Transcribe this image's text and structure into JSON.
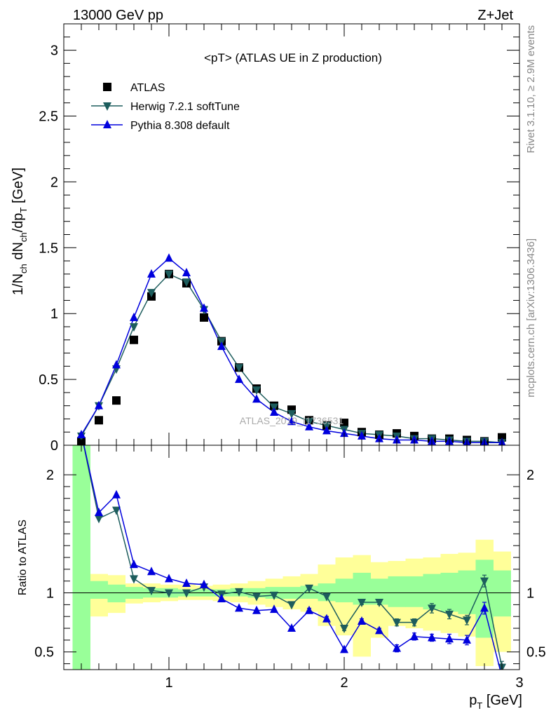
{
  "header": {
    "left": "13000 GeV pp",
    "right": "Z+Jet"
  },
  "side_text": {
    "rivet": "Rivet 3.1.10, ≥ 2.9M events",
    "site": "mcplots.cern.ch [arXiv:1306.3436]"
  },
  "watermark": "ATLAS_2019_I1736531",
  "chart_data": [
    {
      "type": "scatter",
      "title": "<pT> (ATLAS UE in Z production)",
      "xlabel": "p_T [GeV]",
      "ylabel": "1/N_ch dN_ch/dp_T [GeV]",
      "xlim": [
        0.4,
        3.0
      ],
      "ylim": [
        0,
        3.2
      ],
      "yticks": [
        0,
        0.5,
        1,
        1.5,
        2,
        2.5,
        3
      ],
      "ytick_labels": [
        "0",
        "0.5",
        "1",
        "1.5",
        "2",
        "2.5",
        "3"
      ],
      "x": [
        0.5,
        0.6,
        0.7,
        0.8,
        0.9,
        1.0,
        1.1,
        1.2,
        1.3,
        1.4,
        1.5,
        1.6,
        1.7,
        1.8,
        1.9,
        2.0,
        2.1,
        2.2,
        2.3,
        2.4,
        2.5,
        2.6,
        2.7,
        2.8,
        2.9
      ],
      "series": [
        {
          "name": "ATLAS",
          "color": "#000000",
          "marker": "square",
          "values": [
            0.03,
            0.19,
            0.34,
            0.8,
            1.13,
            1.3,
            1.23,
            0.97,
            0.79,
            0.59,
            0.43,
            0.3,
            0.27,
            0.19,
            0.15,
            0.17,
            0.1,
            0.08,
            0.09,
            0.07,
            0.05,
            0.05,
            0.04,
            0.03,
            0.06
          ]
        },
        {
          "name": "Herwig 7.2.1 softTune",
          "color": "#1d5d5d",
          "marker": "triangle-down",
          "values": [
            0.07,
            0.3,
            0.58,
            0.9,
            1.16,
            1.3,
            1.24,
            1.03,
            0.79,
            0.59,
            0.42,
            0.29,
            0.24,
            0.18,
            0.15,
            0.12,
            0.09,
            0.08,
            0.07,
            0.05,
            0.05,
            0.04,
            0.03,
            0.03,
            0.02
          ]
        },
        {
          "name": "Pythia 8.308 default",
          "color": "#0000dd",
          "marker": "triangle-up",
          "values": [
            0.08,
            0.3,
            0.61,
            0.97,
            1.3,
            1.42,
            1.31,
            1.04,
            0.75,
            0.5,
            0.35,
            0.25,
            0.18,
            0.14,
            0.11,
            0.09,
            0.07,
            0.05,
            0.04,
            0.04,
            0.03,
            0.03,
            0.02,
            0.02,
            0.02
          ]
        }
      ],
      "legend_position": "top-left"
    },
    {
      "type": "line",
      "ylabel": "Ratio to ATLAS",
      "xlabel": "p_T [GeV]",
      "xlim": [
        0.4,
        3.0
      ],
      "ylim": [
        0.35,
        2.25
      ],
      "yticks": [
        0.5,
        1,
        2
      ],
      "ytick_labels": [
        "0.5",
        "1",
        "2"
      ],
      "xticks": [
        1,
        2,
        3
      ],
      "xtick_labels": [
        "1",
        "2",
        "3"
      ],
      "x": [
        0.5,
        0.6,
        0.7,
        0.8,
        0.9,
        1.0,
        1.1,
        1.2,
        1.3,
        1.4,
        1.5,
        1.6,
        1.7,
        1.8,
        1.9,
        2.0,
        2.1,
        2.2,
        2.3,
        2.4,
        2.5,
        2.6,
        2.7,
        2.8,
        2.9
      ],
      "band_edges": [
        0.45,
        0.55,
        0.65,
        0.75,
        0.85,
        0.95,
        1.05,
        1.15,
        1.25,
        1.35,
        1.45,
        1.55,
        1.65,
        1.75,
        1.85,
        1.95,
        2.05,
        2.15,
        2.25,
        2.35,
        2.45,
        2.55,
        2.65,
        2.75,
        2.85,
        2.95
      ],
      "stat_band": {
        "color": "#99ff99",
        "low": [
          0.2,
          0.95,
          0.92,
          0.95,
          0.96,
          0.96,
          0.97,
          0.97,
          0.97,
          0.97,
          0.96,
          0.95,
          0.95,
          0.95,
          0.93,
          0.92,
          0.9,
          0.9,
          0.88,
          0.88,
          0.86,
          0.84,
          0.82,
          0.62,
          0.8
        ],
        "high": [
          2.3,
          1.1,
          1.07,
          1.05,
          1.04,
          1.04,
          1.03,
          1.03,
          1.03,
          1.04,
          1.04,
          1.05,
          1.05,
          1.06,
          1.08,
          1.12,
          1.17,
          1.12,
          1.14,
          1.14,
          1.16,
          1.17,
          1.19,
          1.28,
          1.19
        ]
      },
      "syst_band": {
        "color": "#ffff99",
        "low": [
          0.2,
          0.8,
          0.83,
          0.91,
          0.92,
          0.93,
          0.94,
          0.94,
          0.93,
          0.92,
          0.9,
          0.88,
          0.86,
          0.84,
          0.72,
          0.64,
          0.46,
          0.62,
          0.72,
          0.7,
          0.68,
          0.66,
          0.63,
          0.38,
          0.5
        ],
        "high": [
          2.3,
          1.16,
          1.15,
          1.08,
          1.08,
          1.07,
          1.07,
          1.06,
          1.07,
          1.08,
          1.1,
          1.12,
          1.14,
          1.16,
          1.24,
          1.3,
          1.32,
          1.26,
          1.27,
          1.29,
          1.3,
          1.33,
          1.34,
          1.45,
          1.35
        ]
      },
      "series": [
        {
          "name": "Herwig 7.2.1 softTune",
          "color": "#1d5d5d",
          "marker": "triangle-down",
          "values": [
            2.35,
            1.63,
            1.7,
            1.12,
            1.02,
            1.0,
            1.0,
            1.05,
            0.99,
            1.01,
            0.97,
            0.98,
            0.9,
            1.04,
            0.97,
            0.7,
            0.92,
            0.92,
            0.75,
            0.75,
            0.87,
            0.82,
            0.77,
            1.1,
            0.37
          ],
          "errors": [
            0,
            0,
            0,
            0,
            0,
            0,
            0,
            0,
            0,
            0,
            0,
            0,
            0,
            0,
            0,
            0.02,
            0.02,
            0.02,
            0.03,
            0.03,
            0.04,
            0.04,
            0.04,
            0.05,
            0.05
          ]
        },
        {
          "name": "Pythia 8.308 default",
          "color": "#0000dd",
          "marker": "triangle-up",
          "values": [
            2.35,
            1.68,
            1.83,
            1.24,
            1.18,
            1.12,
            1.08,
            1.07,
            0.95,
            0.87,
            0.85,
            0.86,
            0.7,
            0.85,
            0.78,
            0.52,
            0.76,
            0.68,
            0.53,
            0.63,
            0.62,
            0.61,
            0.6,
            0.87,
            0.29
          ],
          "errors": [
            0,
            0,
            0,
            0,
            0,
            0,
            0,
            0,
            0,
            0,
            0,
            0,
            0.01,
            0.02,
            0.02,
            0.02,
            0.02,
            0.02,
            0.03,
            0.03,
            0.03,
            0.04,
            0.04,
            0.05,
            0.05
          ]
        }
      ]
    }
  ]
}
